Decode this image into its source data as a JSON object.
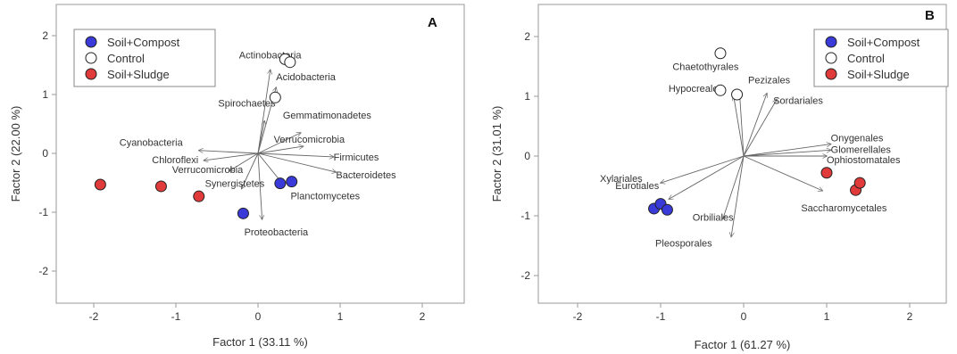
{
  "chart_data": [
    {
      "type": "scatter",
      "panel": "A",
      "xlabel": "Factor 1 (33.11 %)",
      "ylabel": "Factor 2 (22.00 %)",
      "xlim": [
        -2.5,
        2.5
      ],
      "ylim": [
        -2.5,
        2.5
      ],
      "xticks": [
        -2,
        -1,
        0,
        1,
        2
      ],
      "yticks": [
        -2,
        -1,
        0,
        1,
        2
      ],
      "xtick_labels": [
        "-2",
        "-1",
        "0",
        "1",
        "2"
      ],
      "ytick_labels": [
        "-2",
        "-1",
        "0",
        "1",
        "2"
      ],
      "legend_position": "top-left",
      "series": [
        {
          "name": "Soil+Compost",
          "color": "#3a3ad8",
          "points": [
            {
              "x": -0.18,
              "y": -1.02
            },
            {
              "x": 0.27,
              "y": -0.51
            },
            {
              "x": 0.41,
              "y": -0.48
            }
          ]
        },
        {
          "name": "Control",
          "color": "#ffffff",
          "points": [
            {
              "x": 0.33,
              "y": 1.6
            },
            {
              "x": 0.39,
              "y": 1.55
            },
            {
              "x": 0.21,
              "y": 0.95
            }
          ]
        },
        {
          "name": "Soil+Sludge",
          "color": "#e03a3a",
          "points": [
            {
              "x": -1.92,
              "y": -0.53
            },
            {
              "x": -1.18,
              "y": -0.56
            },
            {
              "x": -0.72,
              "y": -0.73
            }
          ]
        }
      ],
      "vectors": [
        {
          "label": "Actinobacteria",
          "x": 0.15,
          "y": 1.42
        },
        {
          "label": "Acidobacteria",
          "x": 0.22,
          "y": 1.12
        },
        {
          "label": "Spirochaetes",
          "x": 0.08,
          "y": 0.55
        },
        {
          "label": "Gemmatimonadetes",
          "x": 0.52,
          "y": 0.35
        },
        {
          "label": "Verrucomicrobia",
          "x": 0.55,
          "y": 0.12
        },
        {
          "label": "Firmicutes",
          "x": 0.92,
          "y": -0.06
        },
        {
          "label": "Bacteroidetes",
          "x": 0.95,
          "y": -0.32
        },
        {
          "label": "Planctomycetes",
          "x": 0.32,
          "y": -0.55
        },
        {
          "label": "Proteobacteria",
          "x": 0.05,
          "y": -1.12
        },
        {
          "label": "Cyanobacteria",
          "x": -0.72,
          "y": 0.05
        },
        {
          "label": "Chloroflexi",
          "x": -0.66,
          "y": -0.12
        },
        {
          "label": "Verrucomicrobia",
          "x": -0.35,
          "y": -0.3
        },
        {
          "label": "Synergistetes",
          "x": -0.2,
          "y": -0.6
        }
      ]
    },
    {
      "type": "scatter",
      "panel": "B",
      "xlabel": "Factor 1 (61.27 %)",
      "ylabel": "Factor 2 (31.01 %)",
      "xlim": [
        -2.5,
        2.5
      ],
      "ylim": [
        -2.5,
        2.5
      ],
      "xticks": [
        -2,
        -1,
        0,
        1,
        2
      ],
      "yticks": [
        -2,
        -1,
        0,
        1,
        2
      ],
      "xtick_labels": [
        "-2",
        "-1",
        "0",
        "1",
        "2"
      ],
      "ytick_labels": [
        "-2",
        "-1",
        "0",
        "1",
        "2"
      ],
      "legend_position": "top-right",
      "series": [
        {
          "name": "Soil+Compost",
          "color": "#3a3ad8",
          "points": [
            {
              "x": -1.08,
              "y": -0.88
            },
            {
              "x": -1.0,
              "y": -0.8
            },
            {
              "x": -0.92,
              "y": -0.9
            }
          ]
        },
        {
          "name": "Control",
          "color": "#ffffff",
          "points": [
            {
              "x": -0.28,
              "y": 1.72
            },
            {
              "x": -0.28,
              "y": 1.1
            },
            {
              "x": -0.08,
              "y": 1.03
            }
          ]
        },
        {
          "name": "Soil+Sludge",
          "color": "#e03a3a",
          "points": [
            {
              "x": 1.0,
              "y": -0.28
            },
            {
              "x": 1.35,
              "y": -0.57
            },
            {
              "x": 1.4,
              "y": -0.45
            }
          ]
        }
      ],
      "vectors": [
        {
          "label": "Chaetothyrales",
          "x": -0.05,
          "y": 1.08
        },
        {
          "label": "Hypocreales",
          "x": -0.12,
          "y": 1.0
        },
        {
          "label": "Pezizales",
          "x": 0.28,
          "y": 1.05
        },
        {
          "label": "Sordariales",
          "x": 0.4,
          "y": 0.95
        },
        {
          "label": "Onygenales",
          "x": 1.05,
          "y": 0.2
        },
        {
          "label": "Glomerellales",
          "x": 1.05,
          "y": 0.1
        },
        {
          "label": "Ophiostomatales",
          "x": 1.0,
          "y": 0.0
        },
        {
          "label": "Saccharomycetales",
          "x": 0.95,
          "y": -0.58
        },
        {
          "label": "Xylariales",
          "x": -1.0,
          "y": -0.45
        },
        {
          "label": "Eurotiales",
          "x": -0.9,
          "y": -0.72
        },
        {
          "label": "Orbiliales",
          "x": -0.25,
          "y": -1.05
        },
        {
          "label": "Pleosporales",
          "x": -0.15,
          "y": -1.35
        }
      ]
    }
  ]
}
